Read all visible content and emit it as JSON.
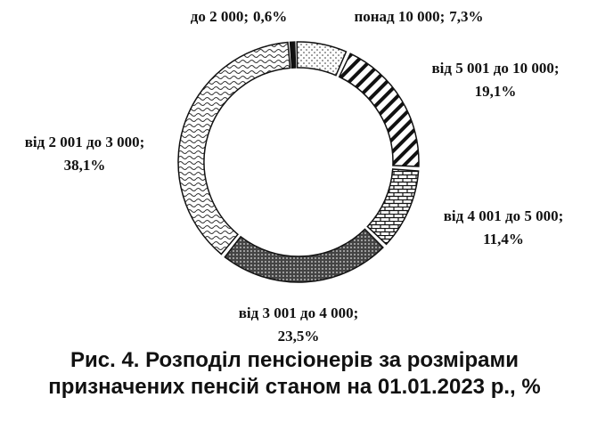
{
  "chart_data": {
    "type": "donut",
    "title": "Рис. 4. Розподіл пенсіонерів за розмірами призначених пенсій станом на 01.01.2023 р., %",
    "categories": [
      "до 2 000;",
      "понад 10 000;",
      "від 5 001 до 10 000;",
      "від 4 001 до 5 000;",
      "від 3 001 до 4 000;",
      "від 2 001 до 3 000;"
    ],
    "values": [
      0.6,
      7.3,
      19.1,
      11.4,
      23.5,
      38.1
    ],
    "value_labels": [
      "0,6%",
      "7,3%",
      "19,1%",
      "11,4%",
      "23,5%",
      "38,1%"
    ]
  }
}
